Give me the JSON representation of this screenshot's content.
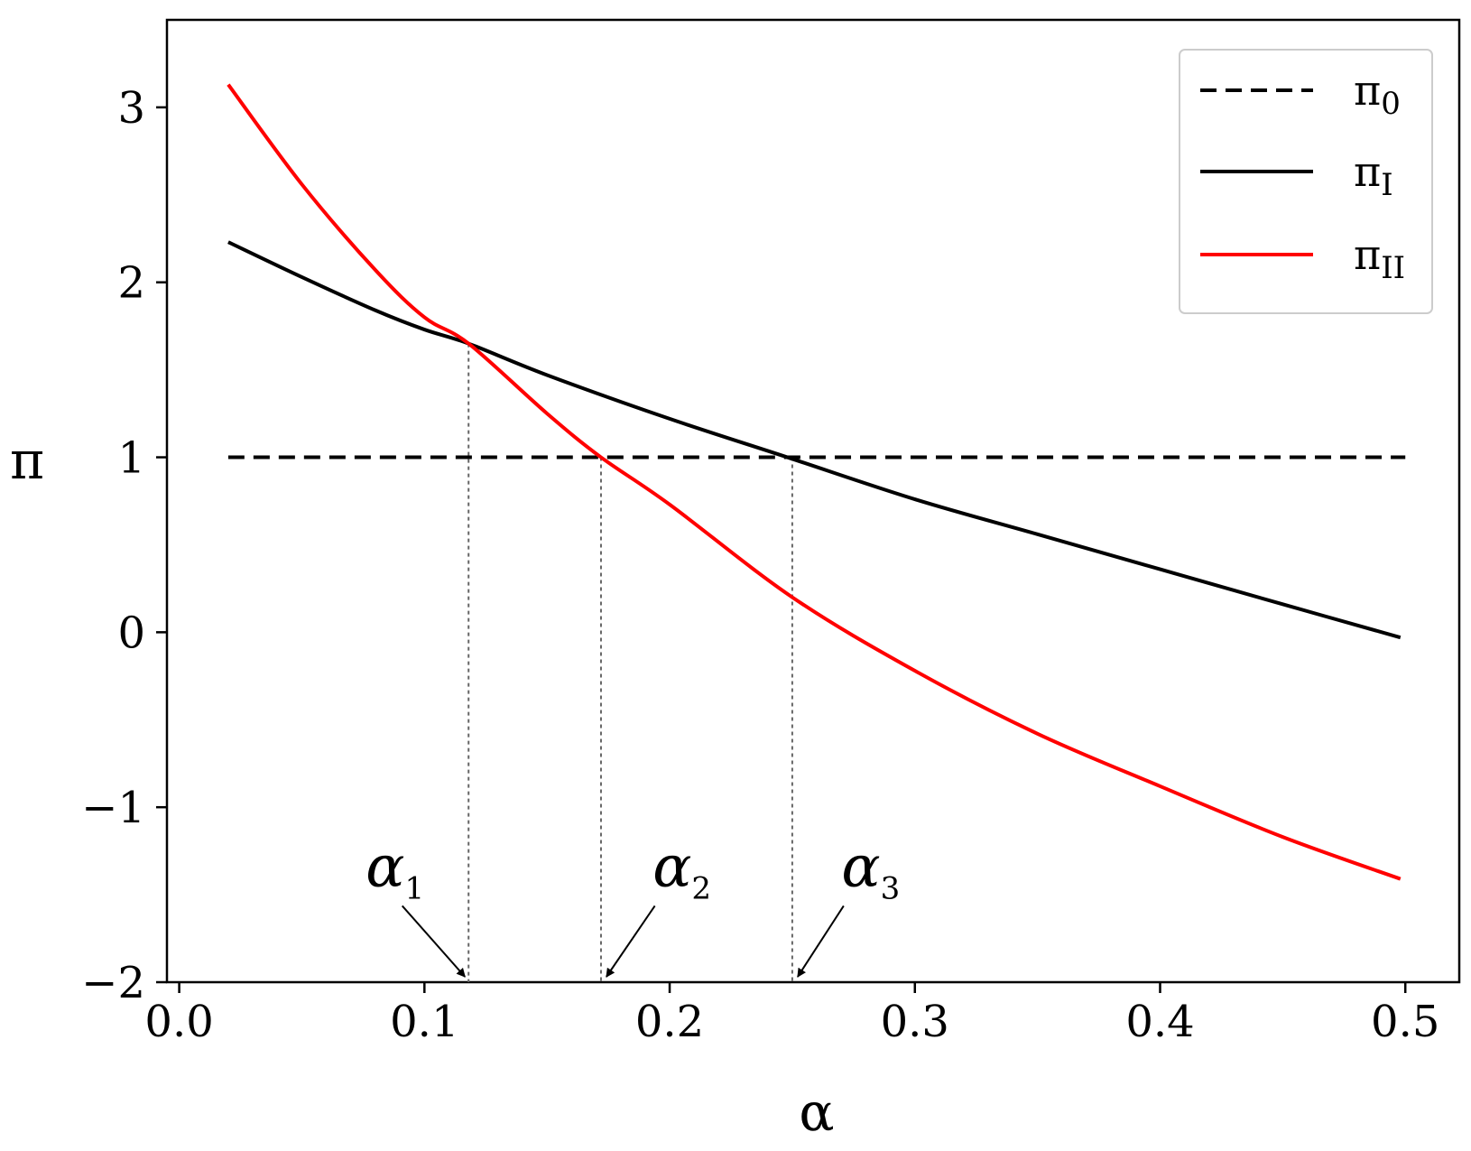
{
  "chart_data": {
    "type": "line",
    "xlabel": "α",
    "ylabel": "π",
    "xlim": [
      -0.005,
      0.522
    ],
    "ylim": [
      -2,
      3.5
    ],
    "xticks": [
      {
        "value": 0.0,
        "label": "0.0"
      },
      {
        "value": 0.1,
        "label": "0.1"
      },
      {
        "value": 0.2,
        "label": "0.2"
      },
      {
        "value": 0.3,
        "label": "0.3"
      },
      {
        "value": 0.4,
        "label": "0.4"
      },
      {
        "value": 0.5,
        "label": "0.5"
      }
    ],
    "yticks": [
      {
        "value": -2,
        "label": "−2"
      },
      {
        "value": -1,
        "label": "−1"
      },
      {
        "value": 0,
        "label": "0"
      },
      {
        "value": 1,
        "label": "1"
      },
      {
        "value": 2,
        "label": "2"
      },
      {
        "value": 3,
        "label": "3"
      }
    ],
    "grid": false,
    "legend_position": "top-right",
    "series": [
      {
        "id": "pi0",
        "label_base": "π",
        "label_sub": "0",
        "color": "#000000",
        "style": "dashed",
        "x": [
          0.02,
          0.5
        ],
        "y": [
          1.0,
          1.0
        ]
      },
      {
        "id": "pi1",
        "label_base": "π",
        "label_sub": "I",
        "color": "#000000",
        "style": "solid",
        "x": [
          0.02,
          0.05,
          0.08,
          0.1,
          0.118,
          0.15,
          0.2,
          0.248,
          0.3,
          0.35,
          0.4,
          0.45,
          0.498
        ],
        "y": [
          2.23,
          2.03,
          1.84,
          1.73,
          1.65,
          1.47,
          1.22,
          1.0,
          0.76,
          0.56,
          0.36,
          0.16,
          -0.03
        ]
      },
      {
        "id": "pi2",
        "label_base": "π",
        "label_sub": "II",
        "color": "#ff0000",
        "style": "solid",
        "x": [
          0.02,
          0.05,
          0.08,
          0.1,
          0.118,
          0.15,
          0.172,
          0.2,
          0.25,
          0.3,
          0.35,
          0.4,
          0.45,
          0.498
        ],
        "y": [
          3.13,
          2.56,
          2.07,
          1.8,
          1.65,
          1.25,
          1.0,
          0.73,
          0.2,
          -0.22,
          -0.58,
          -0.88,
          -1.17,
          -1.41
        ]
      }
    ],
    "reference_lines": [
      {
        "x": 0.118,
        "y": 1.65
      },
      {
        "x": 0.172,
        "y": 1.0
      },
      {
        "x": 0.25,
        "y": 1.0
      }
    ],
    "annotations": [
      {
        "base": "α",
        "sub": "1",
        "x": 0.118,
        "text_x": 0.088,
        "text_y": -1.45
      },
      {
        "base": "α",
        "sub": "2",
        "x": 0.172,
        "text_x": 0.205,
        "text_y": -1.45
      },
      {
        "base": "α",
        "sub": "3",
        "x": 0.25,
        "text_x": 0.282,
        "text_y": -1.45
      }
    ]
  }
}
